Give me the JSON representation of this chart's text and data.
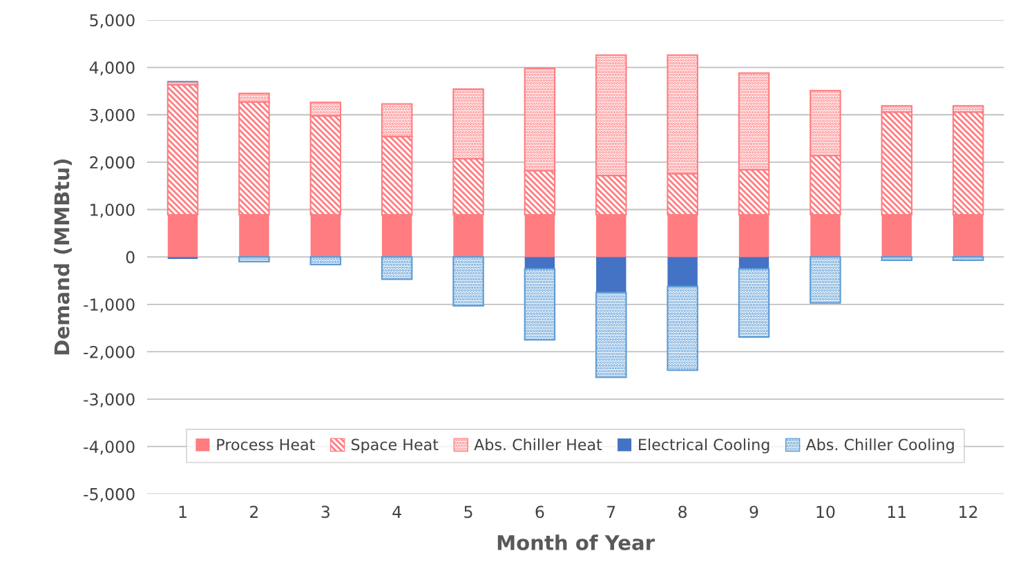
{
  "chart_data": {
    "type": "bar",
    "stacked": true,
    "xlabel": "Month of Year",
    "ylabel": "Demand (MMBtu)",
    "categories": [
      "1",
      "2",
      "3",
      "4",
      "5",
      "6",
      "7",
      "8",
      "9",
      "10",
      "11",
      "12"
    ],
    "series": [
      {
        "name": "Process Heat",
        "color": "#ff7c80",
        "values": [
          890,
          890,
          890,
          890,
          890,
          890,
          890,
          890,
          890,
          890,
          890,
          890
        ]
      },
      {
        "name": "Space Heat",
        "color": "#ff7c80",
        "values": [
          2740,
          2380,
          2090,
          1650,
          1180,
          930,
          830,
          870,
          950,
          1250,
          2170,
          2170
        ]
      },
      {
        "name": "Abs. Chiller Heat",
        "color": "#ff7c80",
        "values": [
          70,
          180,
          280,
          690,
          1470,
          2160,
          2540,
          2500,
          2040,
          1370,
          130,
          130
        ]
      },
      {
        "name": "Electrical Cooling",
        "color": "#4472c4",
        "values": [
          -40,
          0,
          0,
          0,
          0,
          -250,
          -750,
          -620,
          -250,
          0,
          0,
          0
        ]
      },
      {
        "name": "Abs. Chiller Cooling",
        "color": "#5b9bd5",
        "values": [
          0,
          -100,
          -160,
          -470,
          -1030,
          -1500,
          -1790,
          -1770,
          -1440,
          -970,
          -70,
          -70
        ]
      }
    ],
    "ylim": [
      -5000,
      5000
    ],
    "yticks": [
      {
        "value": -5000,
        "label": "-5,000"
      },
      {
        "value": -4000,
        "label": "-4,000"
      },
      {
        "value": -3000,
        "label": "-3,000"
      },
      {
        "value": -2000,
        "label": "-2,000"
      },
      {
        "value": -1000,
        "label": "-1,000"
      },
      0,
      {
        "value": 1000,
        "label": "1,000"
      },
      {
        "value": 2000,
        "label": "2,000"
      },
      {
        "value": 3000,
        "label": "3,000"
      },
      {
        "value": 4000,
        "label": "4,000"
      },
      {
        "value": 5000,
        "label": "5,000"
      }
    ],
    "grid": "y",
    "legend": "bottom"
  }
}
